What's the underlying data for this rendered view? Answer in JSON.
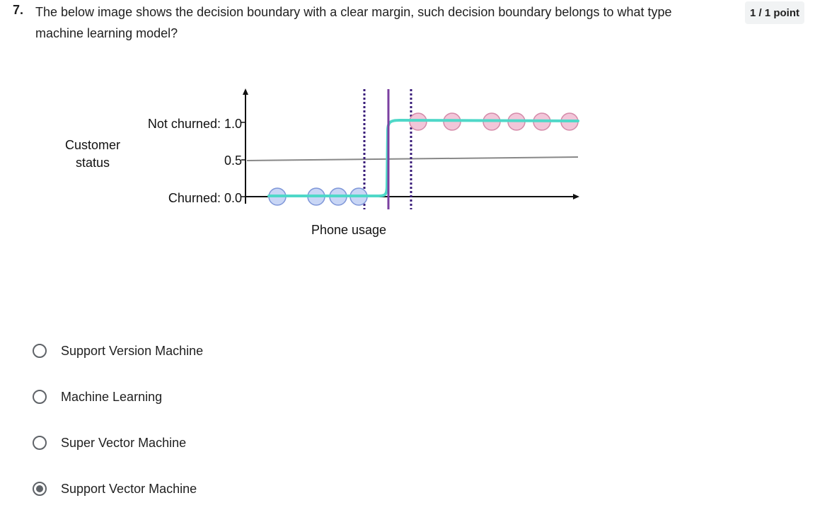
{
  "question": {
    "number": "7.",
    "text": "The below image shows the decision boundary with a clear margin, such decision boundary belongs to what type machine learning model?",
    "points": "1 / 1 point"
  },
  "figure": {
    "y_label_line1": "Customer",
    "y_label_line2": "status",
    "tick_high": "Not churned: 1.0",
    "tick_mid": "0.5",
    "tick_low": "Churned: 0.0",
    "x_label": "Phone usage",
    "colors": {
      "curve": "#4fd8c8",
      "boundary": "#7b3fa0",
      "threshold_line": "#888888",
      "churned_point_fill": "#c9d6f5",
      "churned_point_stroke": "#7e96d8",
      "not_churned_point_fill": "#f2c6d9",
      "not_churned_point_stroke": "#d58aa9"
    }
  },
  "options": [
    {
      "label": "Support Version Machine",
      "selected": false
    },
    {
      "label": "Machine Learning",
      "selected": false
    },
    {
      "label": "Super Vector Machine",
      "selected": false
    },
    {
      "label": "Support Vector Machine",
      "selected": true
    }
  ]
}
